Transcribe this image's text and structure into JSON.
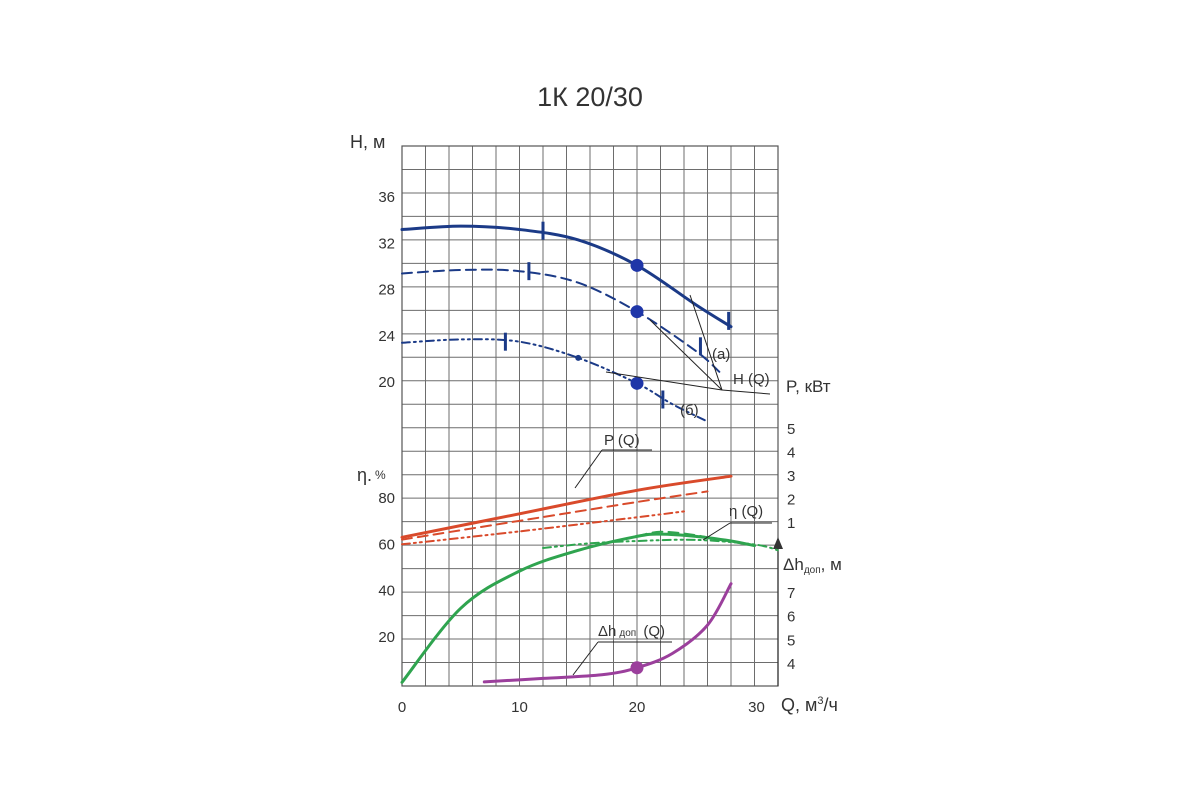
{
  "chart_data": {
    "type": "line",
    "title": "1К 20/30",
    "x_axis": {
      "label": "Q, м³/ч",
      "range": [
        0,
        32
      ],
      "ticks": [
        0,
        10,
        20,
        30
      ]
    },
    "axes": {
      "H": {
        "label": "H, м",
        "range": [
          0,
          40
        ],
        "ticks": [
          20,
          24,
          28,
          32,
          36
        ]
      },
      "eta": {
        "label": "η, %",
        "range": [
          0,
          80
        ],
        "ticks": [
          20,
          40,
          60,
          80
        ]
      },
      "P": {
        "label": "P, кВт",
        "range": [
          0,
          5
        ],
        "ticks": [
          1,
          2,
          3,
          4,
          5
        ]
      },
      "npsh": {
        "label": "Δh доп, м",
        "range": [
          3,
          8
        ],
        "ticks": [
          4,
          5,
          6,
          7
        ]
      }
    },
    "grid": true,
    "series": [
      {
        "name": "H (Q)",
        "axis": "H",
        "style": "solid",
        "color": "#1b3a87",
        "x": [
          0,
          5,
          10,
          15,
          20,
          25,
          28
        ],
        "y": [
          33.1,
          33.4,
          33.1,
          32.2,
          30.0,
          26.6,
          24.7
        ]
      },
      {
        "name": "H (Q) (а)",
        "axis": "H",
        "style": "dashed",
        "color": "#1b3a87",
        "x": [
          0,
          5,
          10,
          15,
          20,
          25,
          27
        ],
        "y": [
          29.3,
          29.6,
          29.5,
          28.5,
          26.0,
          22.6,
          20.8
        ]
      },
      {
        "name": "H (Q) (б)",
        "axis": "H",
        "style": "dashdotdot",
        "color": "#1b3a87",
        "x": [
          0,
          5,
          10,
          15,
          20,
          23,
          26
        ],
        "y": [
          23.3,
          23.6,
          23.4,
          22.0,
          19.8,
          18.0,
          16.5
        ]
      },
      {
        "name": "P (Q)",
        "axis": "P",
        "style": "solid",
        "color": "#d94a2b",
        "x": [
          0,
          10,
          20,
          28
        ],
        "y": [
          0.35,
          1.35,
          2.35,
          2.95
        ]
      },
      {
        "name": "P (Q) (а)",
        "axis": "P",
        "style": "dashed",
        "color": "#d94a2b",
        "x": [
          0,
          10,
          20,
          26
        ],
        "y": [
          0.25,
          1.05,
          1.85,
          2.3
        ]
      },
      {
        "name": "P (Q) (б)",
        "axis": "P",
        "style": "dashdotdot",
        "color": "#d94a2b",
        "x": [
          0,
          10,
          20,
          24
        ],
        "y": [
          0.05,
          0.6,
          1.2,
          1.45
        ]
      },
      {
        "name": "η (Q)",
        "axis": "eta",
        "style": "solid",
        "color": "#2fa44f",
        "x": [
          0,
          5,
          10,
          15,
          20,
          22,
          25,
          28,
          30
        ],
        "y": [
          0,
          32,
          48,
          57,
          63,
          64,
          63,
          61,
          59
        ]
      },
      {
        "name": "η (Q) (а)",
        "axis": "eta",
        "style": "dashed",
        "color": "#2fa44f",
        "x": [
          20,
          22,
          25,
          28
        ],
        "y": [
          63,
          65,
          63.5,
          60.5
        ]
      },
      {
        "name": "η (Q) (б)",
        "axis": "eta",
        "style": "dashdotdot",
        "color": "#2fa44f",
        "x": [
          12,
          16,
          20,
          25,
          30,
          32
        ],
        "y": [
          58,
          60,
          61,
          61.5,
          59.5,
          57
        ]
      },
      {
        "name": "Δh доп (Q)",
        "axis": "npsh",
        "style": "solid",
        "color": "#9b3f9c",
        "x": [
          7,
          12,
          17,
          20,
          23,
          26,
          28
        ],
        "y": [
          3.2,
          3.35,
          3.5,
          3.8,
          4.4,
          5.6,
          7.35
        ]
      }
    ],
    "markers": [
      {
        "axis": "H",
        "x": 20,
        "y": 30.0
      },
      {
        "axis": "H",
        "x": 20,
        "y": 26.0
      },
      {
        "axis": "H",
        "x": 20,
        "y": 19.8
      },
      {
        "axis": "npsh",
        "x": 20,
        "y": 3.8
      }
    ],
    "annotations": {
      "H": "H (Q)",
      "a": "(а)",
      "b": "(б)",
      "P": "P (Q)",
      "eta": "η (Q)",
      "npsh": {
        "prefix": "Δh",
        "sub": "доп",
        "suffix": " (Q)"
      }
    }
  }
}
